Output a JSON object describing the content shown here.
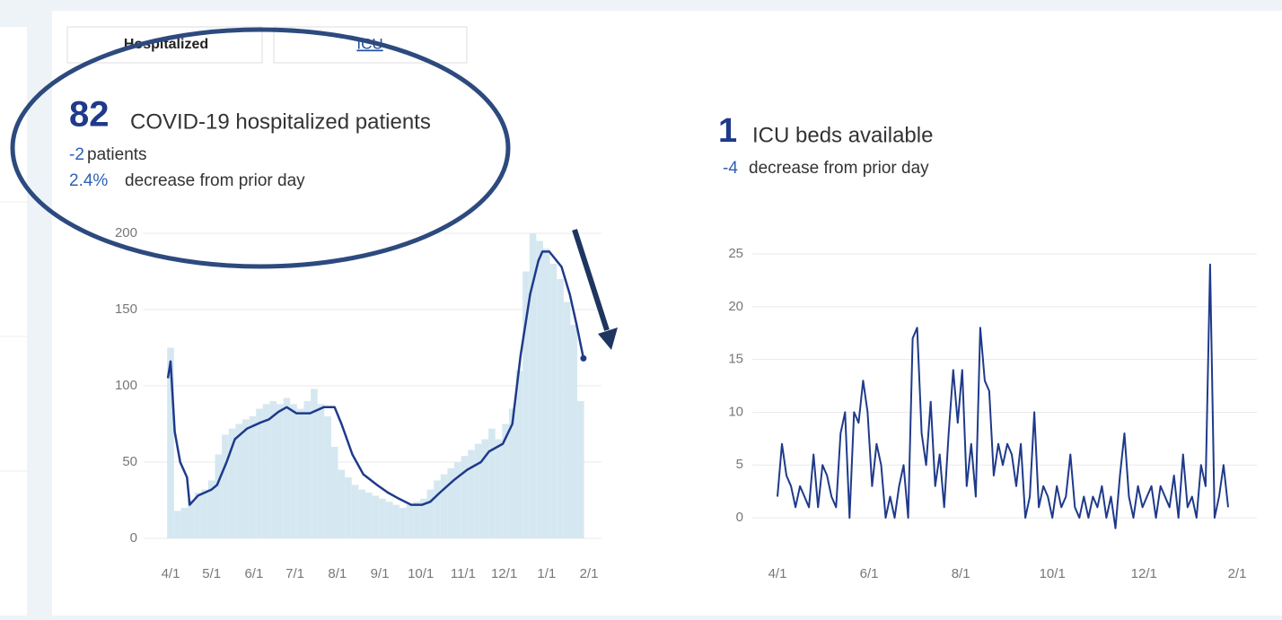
{
  "tabs": [
    "Hospitalized",
    "ICU"
  ],
  "chart_data": [
    {
      "type": "combo",
      "headline_value": 82,
      "headline_text": "COVID-19 hospitalized patients",
      "change_value": -2,
      "change_text": "patients",
      "change_pct": {
        "value": 2.4,
        "label": "2.4%"
      },
      "change_pct_text": "decrease from prior day",
      "ylim": [
        0,
        200
      ],
      "yticks": [
        0,
        50,
        100,
        150,
        200
      ],
      "xlim": [
        0,
        306
      ],
      "xticks": [
        {
          "value": 0,
          "label": "4/1"
        },
        {
          "value": 30,
          "label": "5/1"
        },
        {
          "value": 61,
          "label": "6/1"
        },
        {
          "value": 91,
          "label": "7/1"
        },
        {
          "value": 122,
          "label": "8/1"
        },
        {
          "value": 153,
          "label": "9/1"
        },
        {
          "value": 183,
          "label": "10/1"
        },
        {
          "value": 214,
          "label": "11/1"
        },
        {
          "value": 244,
          "label": "12/1"
        },
        {
          "value": 275,
          "label": "1/1"
        },
        {
          "value": 306,
          "label": "2/1"
        }
      ],
      "grid": true,
      "series": [
        {
          "type": "bar",
          "color": "#d5e8f1",
          "x": [
            0,
            5,
            10,
            15,
            20,
            25,
            30,
            35,
            40,
            45,
            50,
            55,
            60,
            65,
            70,
            75,
            80,
            85,
            90,
            95,
            100,
            105,
            110,
            115,
            120,
            125,
            130,
            135,
            140,
            145,
            150,
            155,
            160,
            165,
            170,
            175,
            180,
            185,
            190,
            195,
            200,
            205,
            210,
            215,
            220,
            225,
            230,
            235,
            240,
            245,
            250,
            255,
            260,
            265,
            270,
            275,
            280,
            285,
            290,
            295,
            300
          ],
          "values": [
            125,
            18,
            20,
            25,
            30,
            32,
            38,
            55,
            68,
            72,
            75,
            78,
            80,
            85,
            88,
            90,
            88,
            92,
            88,
            85,
            90,
            98,
            88,
            80,
            60,
            45,
            40,
            35,
            32,
            30,
            28,
            26,
            24,
            22,
            20,
            22,
            24,
            26,
            32,
            38,
            42,
            46,
            50,
            54,
            58,
            62,
            65,
            72,
            65,
            75,
            85,
            110,
            175,
            200,
            195,
            190,
            180,
            170,
            155,
            140,
            90
          ]
        },
        {
          "type": "line",
          "color": "#1f3a8a",
          "x": [
            -2,
            0,
            3,
            7,
            12,
            14,
            20,
            30,
            34,
            41,
            47,
            56,
            66,
            72,
            79,
            85,
            92,
            102,
            112,
            120,
            125,
            133,
            141,
            151,
            159,
            167,
            176,
            184,
            190,
            197,
            207,
            217,
            227,
            233,
            243,
            250,
            256,
            263,
            269,
            272,
            277,
            286,
            292,
            297,
            302
          ],
          "values": [
            105,
            116,
            70,
            50,
            40,
            22,
            28,
            32,
            35,
            50,
            65,
            72,
            76,
            78,
            83,
            86,
            82,
            82,
            86,
            86,
            75,
            55,
            42,
            35,
            30,
            26,
            22,
            22,
            24,
            30,
            38,
            45,
            50,
            57,
            62,
            75,
            120,
            160,
            182,
            188,
            188,
            178,
            160,
            140,
            118
          ]
        }
      ]
    },
    {
      "type": "line",
      "headline_value": 1,
      "headline_text": "ICU beds available",
      "change_value": -4,
      "change_text": "decrease from prior day",
      "ylim": [
        -3,
        26
      ],
      "yticks": [
        0,
        5,
        10,
        15,
        20,
        25
      ],
      "xlim": [
        0,
        306
      ],
      "xticks": [
        {
          "value": 0,
          "label": "4/1"
        },
        {
          "value": 61,
          "label": "6/1"
        },
        {
          "value": 122,
          "label": "8/1"
        },
        {
          "value": 183,
          "label": "10/1"
        },
        {
          "value": 244,
          "label": "12/1"
        },
        {
          "value": 306,
          "label": "2/1"
        }
      ],
      "grid": true,
      "series": [
        {
          "color": "#1f3a8a",
          "x": [
            0,
            3,
            6,
            9,
            12,
            15,
            18,
            21,
            24,
            27,
            30,
            33,
            36,
            39,
            42,
            45,
            48,
            51,
            54,
            57,
            60,
            63,
            66,
            69,
            72,
            75,
            78,
            81,
            84,
            87,
            90,
            93,
            96,
            99,
            102,
            105,
            108,
            111,
            114,
            117,
            120,
            123,
            126,
            129,
            132,
            135,
            138,
            141,
            144,
            147,
            150,
            153,
            156,
            159,
            162,
            165,
            168,
            171,
            174,
            177,
            180,
            183,
            186,
            189,
            192,
            195,
            198,
            201,
            204,
            207,
            210,
            213,
            216,
            219,
            222,
            225,
            228,
            231,
            234,
            237,
            240,
            243,
            246,
            249,
            252,
            255,
            258,
            261,
            264,
            267,
            270,
            273,
            276,
            279,
            282,
            285,
            288,
            291,
            294,
            297,
            300
          ],
          "values": [
            2,
            7,
            4,
            3,
            1,
            3,
            2,
            1,
            6,
            1,
            5,
            4,
            2,
            1,
            8,
            10,
            0,
            10,
            9,
            13,
            10,
            3,
            7,
            5,
            0,
            2,
            0,
            3,
            5,
            0,
            17,
            18,
            8,
            5,
            11,
            3,
            6,
            1,
            8,
            14,
            9,
            14,
            3,
            7,
            2,
            18,
            13,
            12,
            4,
            7,
            5,
            7,
            6,
            3,
            7,
            0,
            2,
            10,
            1,
            3,
            2,
            0,
            3,
            1,
            2,
            6,
            1,
            0,
            2,
            0,
            2,
            1,
            3,
            0,
            2,
            -1,
            4,
            8,
            2,
            0,
            3,
            1,
            2,
            3,
            0,
            3,
            2,
            1,
            4,
            0,
            6,
            1,
            2,
            0,
            5,
            3,
            24,
            0,
            2,
            5,
            1
          ]
        }
      ]
    }
  ]
}
